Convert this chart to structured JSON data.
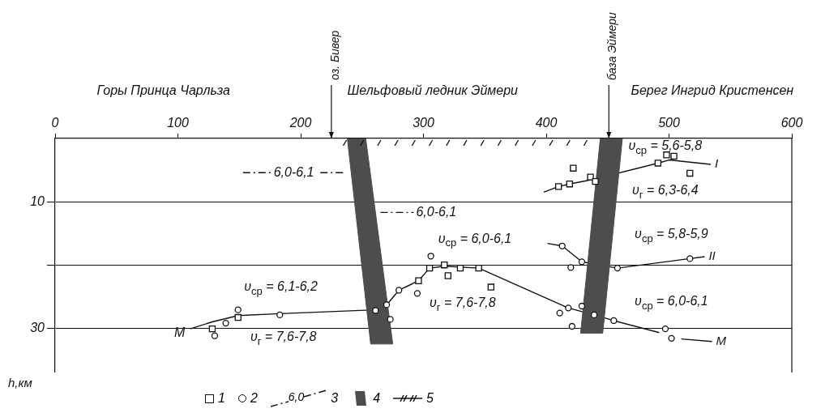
{
  "chart_data": {
    "type": "line",
    "xlim": [
      0,
      600
    ],
    "xticks": [
      0,
      100,
      200,
      300,
      400,
      500,
      600
    ],
    "ylim": [
      37,
      0
    ],
    "yticks": [
      10,
      {
        "value": 20,
        "label": null
      },
      30
    ],
    "ylabel": "h,км",
    "grid": "y",
    "legend": "bottom",
    "series": [
      {
        "name": "1",
        "type": "scatter",
        "marker": "square",
        "color": "#111111",
        "x": [
          128,
          149,
          296,
          305,
          317,
          320,
          330,
          345,
          355,
          410,
          419,
          422,
          436,
          440,
          491,
          498,
          504,
          517
        ],
        "values": [
          30.1,
          28.3,
          22.5,
          20.5,
          20.0,
          21.7,
          20.5,
          20.5,
          23.5,
          7.6,
          7.2,
          4.7,
          6.1,
          6.8,
          3.9,
          2.6,
          2.8,
          5.5
        ]
      },
      {
        "name": "2",
        "type": "scatter",
        "marker": "circle",
        "color": "#111111",
        "x": [
          130,
          139,
          149,
          183,
          261,
          270,
          273,
          280,
          295,
          306,
          411,
          413,
          418,
          420,
          421,
          429,
          429,
          439,
          455,
          458,
          497,
          502,
          517
        ],
        "values": [
          31.2,
          29.2,
          27.1,
          27.9,
          27.2,
          26.3,
          28.6,
          24.0,
          24.5,
          18.6,
          27.6,
          17.0,
          26.8,
          20.4,
          29.7,
          19.5,
          26.5,
          27.9,
          28.8,
          20.5,
          30.1,
          31.6,
          19.0
        ]
      },
      {
        "name": "3",
        "type": "line",
        "line_style": "dashed",
        "color": "#111111",
        "x": [
          153,
          176,
          null,
          216,
          237,
          null,
          265,
          292
        ],
        "values": [
          5.4,
          5.4,
          null,
          5.4,
          5.4,
          null,
          11.7,
          11.7
        ]
      },
      {
        "name": "4",
        "type": "area",
        "color": "#4d4d4d",
        "x": [
          238,
          253,
          275,
          257,
          238
        ],
        "values": [
          0,
          0,
          32.5,
          32.5,
          0
        ]
      },
      {
        "type": "area",
        "color": "#4d4d4d",
        "x": [
          444,
          462,
          446,
          428,
          444
        ],
        "values": [
          0,
          0,
          30.8,
          30.8,
          0
        ]
      },
      {
        "name": "5",
        "type": "scatter",
        "marker": "cross",
        "color": "#111111",
        "x": [
          236,
          250,
          264,
          278,
          292,
          306,
          320,
          334,
          348,
          362,
          376,
          390,
          404,
          418,
          432
        ],
        "values": [
          0.7,
          0.7,
          0.7,
          0.7,
          0.7,
          0.7,
          0.7,
          0.7,
          0.7,
          0.7,
          0.7,
          0.7,
          0.7,
          0.7,
          0.7
        ]
      },
      {
        "name": "I",
        "color": "#111111",
        "x": [
          398,
          410,
          419,
          440,
          491,
          500,
          534
        ],
        "values": [
          8.5,
          7.6,
          7.2,
          6.4,
          3.9,
          3.4,
          4.1
        ]
      },
      {
        "name": "II",
        "color": "#111111",
        "x": [
          401,
          413,
          429,
          458,
          517,
          529
        ],
        "values": [
          16.6,
          17.0,
          19.5,
          20.5,
          19.0,
          18.7
        ]
      },
      {
        "name": "M",
        "color": "#111111",
        "x": [
          110,
          128,
          149,
          183,
          261,
          270,
          280,
          296,
          305,
          317,
          345,
          418,
          439,
          455,
          492,
          null,
          510,
          535
        ],
        "values": [
          30.1,
          29.0,
          28.0,
          27.7,
          27.1,
          26.3,
          24.0,
          22.5,
          20.5,
          20.2,
          20.5,
          26.8,
          27.9,
          28.8,
          30.7,
          null,
          31.7,
          32.1
        ]
      }
    ],
    "annotations": [
      "Горы Принца Чарльза",
      "оз. Бивер",
      "Шельфовый ледник Эймери",
      "база Эймери",
      "Берег Ингрид Кристенсен",
      "υ$_{ср}$ = 5,6-5,8",
      "υ$_{г}$ = 6,3-6,4",
      "υ$_{ср}$ = 5,8-5,9",
      "υ$_{ср}$ = 6,0-6,1",
      "υ$_{ср}$ = 6,0-6,1",
      "υ$_{г}$ = 7,6-7,8",
      "υ$_{ср}$ = 6,1-6,2",
      "υ$_{г}$ = 7,6-7,8",
      {
        "text": "6,0-6,1",
        "x": 178,
        "y": 5.4
      },
      {
        "text": "6,0-6,1",
        "x": 294,
        "y": 11.7
      },
      "M",
      "6,0"
    ]
  }
}
